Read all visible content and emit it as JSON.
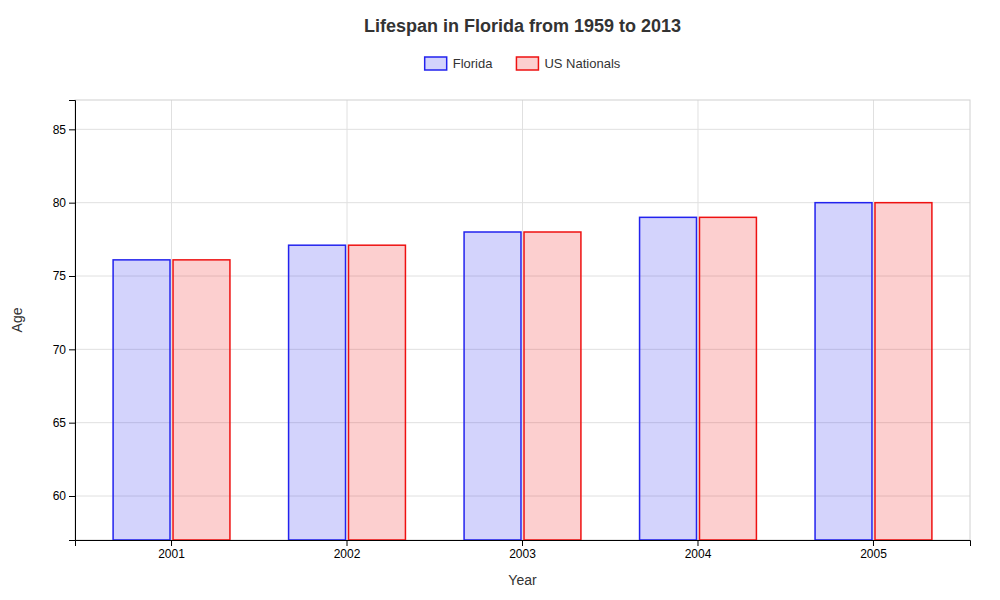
{
  "chart_data": {
    "type": "bar",
    "title": "Lifespan in Florida from 1959 to 2013",
    "xlabel": "Year",
    "ylabel": "Age",
    "categories": [
      "2001",
      "2002",
      "2003",
      "2004",
      "2005"
    ],
    "series": [
      {
        "name": "Florida",
        "color": "#2222ee",
        "values": [
          76.1,
          77.1,
          78.0,
          79.0,
          80.0
        ]
      },
      {
        "name": "US Nationals",
        "color": "#ee1111",
        "values": [
          76.1,
          77.1,
          78.0,
          79.0,
          80.0
        ]
      }
    ],
    "ylim": [
      57,
      87
    ],
    "yticks": [
      60,
      65,
      70,
      75,
      80,
      85
    ],
    "grid": true,
    "legend": "top"
  }
}
